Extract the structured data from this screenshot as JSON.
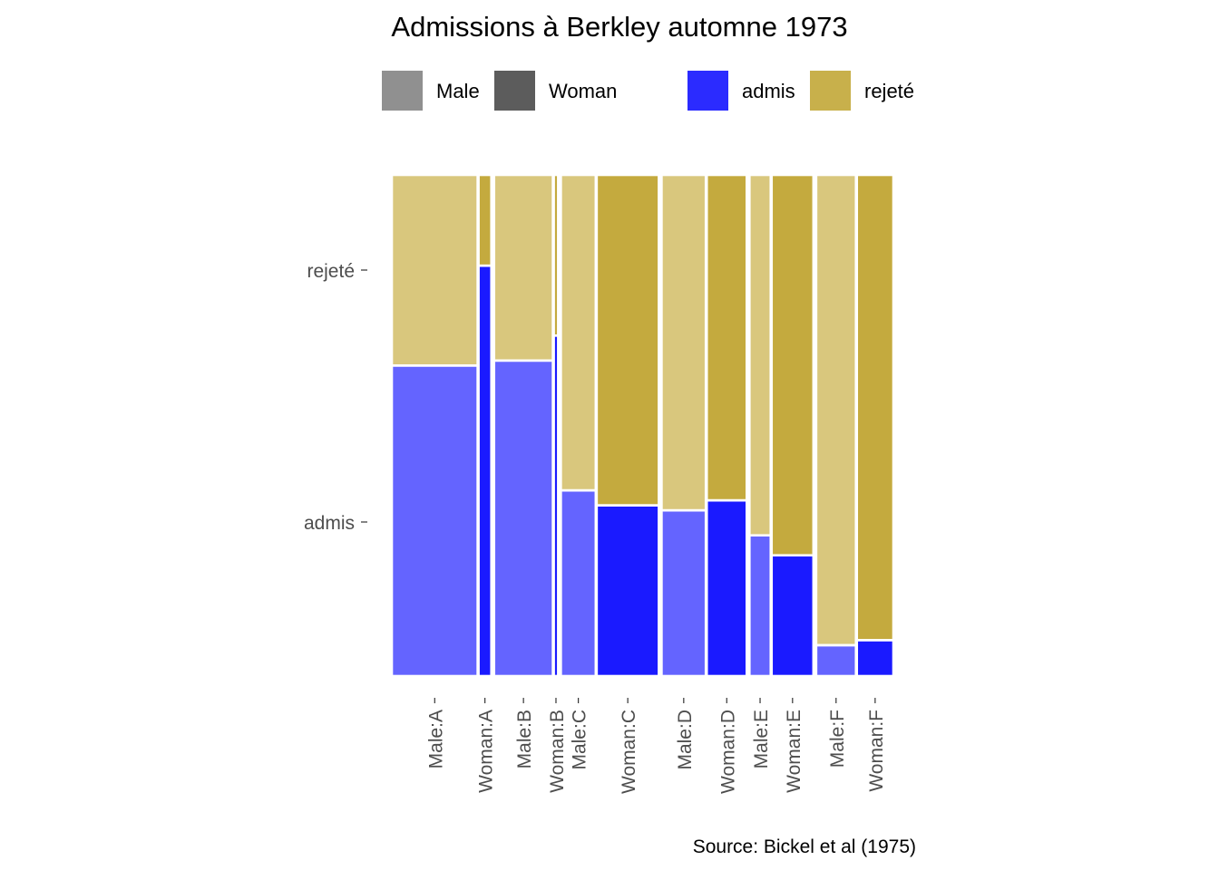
{
  "chart_data": {
    "type": "mosaic",
    "title": "Admissions à Berkley automne 1973",
    "caption": "Source: Bickel et al (1975)",
    "x_axis_labels": [
      "Male:A",
      "Woman:A",
      "Male:B",
      "Woman:B",
      "Male:C",
      "Woman:C",
      "Male:D",
      "Woman:D",
      "Male:E",
      "Woman:E",
      "Male:F",
      "Woman:F"
    ],
    "y_axis_labels": [
      "rejeté",
      "admis"
    ],
    "legend": [
      {
        "label": "Male",
        "color": "#909090"
      },
      {
        "label": "Woman",
        "color": "#5c5c5c"
      },
      {
        "label": "admis",
        "color": "#2b2bff"
      },
      {
        "label": "rejeté",
        "color": "#c8b04b"
      }
    ],
    "fill_levels": [
      "admis",
      "rejeté"
    ],
    "colors": {
      "admis_male": "#6464ff",
      "admis_woman": "#1a1aff",
      "rejete_male": "#d9c77d",
      "rejete_woman": "#c4aa3e"
    },
    "cells": [
      {
        "gender": "Male",
        "dept": "A",
        "count": 825,
        "admit_rate": 0.62
      },
      {
        "gender": "Woman",
        "dept": "A",
        "count": 108,
        "admit_rate": 0.82
      },
      {
        "gender": "Male",
        "dept": "B",
        "count": 560,
        "admit_rate": 0.63
      },
      {
        "gender": "Woman",
        "dept": "B",
        "count": 25,
        "admit_rate": 0.68
      },
      {
        "gender": "Male",
        "dept": "C",
        "count": 325,
        "admit_rate": 0.37
      },
      {
        "gender": "Woman",
        "dept": "C",
        "count": 593,
        "admit_rate": 0.34
      },
      {
        "gender": "Male",
        "dept": "D",
        "count": 417,
        "admit_rate": 0.33
      },
      {
        "gender": "Woman",
        "dept": "D",
        "count": 375,
        "admit_rate": 0.35
      },
      {
        "gender": "Male",
        "dept": "E",
        "count": 191,
        "admit_rate": 0.28
      },
      {
        "gender": "Woman",
        "dept": "E",
        "count": 393,
        "admit_rate": 0.24
      },
      {
        "gender": "Male",
        "dept": "F",
        "count": 373,
        "admit_rate": 0.06
      },
      {
        "gender": "Woman",
        "dept": "F",
        "count": 341,
        "admit_rate": 0.07
      }
    ]
  }
}
